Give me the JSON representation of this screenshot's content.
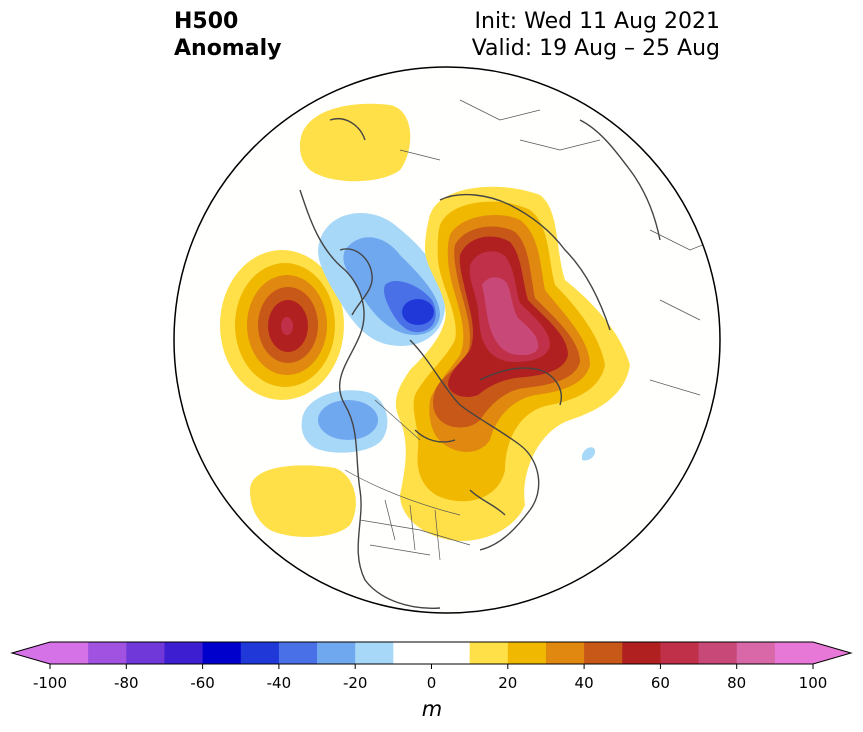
{
  "header": {
    "field": "H500",
    "kind": "Anomaly",
    "init": "Init: Wed 11 Aug 2021",
    "valid": "Valid: 19 Aug – 25 Aug"
  },
  "colorbar": {
    "unit": "m",
    "ticks": [
      "-100",
      "-80",
      "-60",
      "-40",
      "-20",
      "0",
      "20",
      "40",
      "60",
      "80",
      "100"
    ],
    "colors": [
      "#d672e8",
      "#a152e0",
      "#7038d8",
      "#3d1ed0",
      "#0000cc",
      "#2038d8",
      "#4a70e8",
      "#70a8f0",
      "#a8d8f8",
      "#ffffff",
      "#ffffff",
      "#ffe048",
      "#f0b800",
      "#e08810",
      "#c85818",
      "#b02020",
      "#c03048",
      "#c84878",
      "#d868a8",
      "#e878d8"
    ],
    "under_color": "#d672e8",
    "over_color": "#e878d8"
  }
}
